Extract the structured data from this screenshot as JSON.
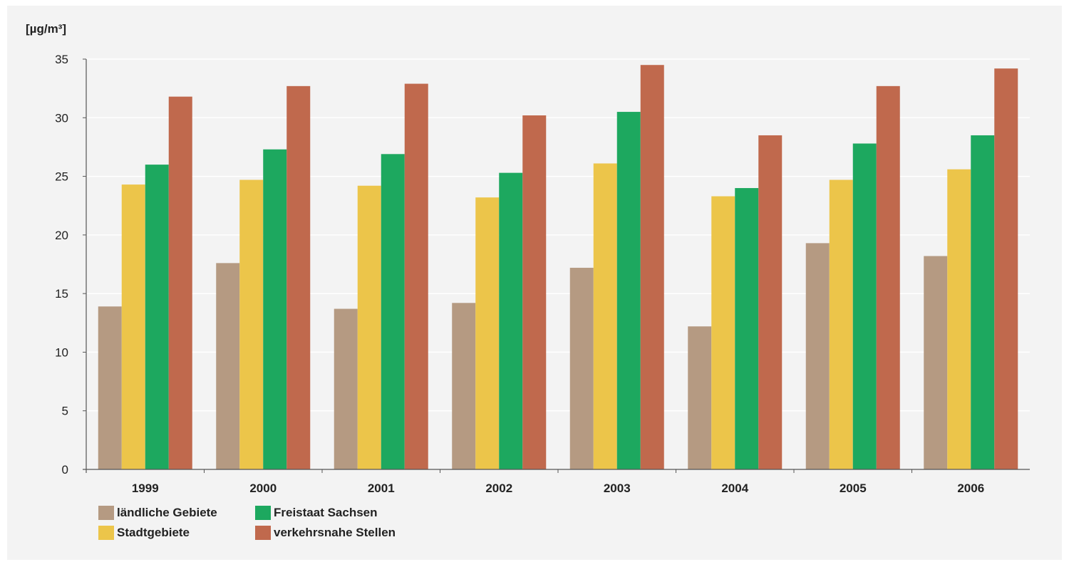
{
  "chart_data": {
    "type": "bar",
    "unit_label": "[µg/m³]",
    "categories": [
      "1999",
      "2000",
      "2001",
      "2002",
      "2003",
      "2004",
      "2005",
      "2006"
    ],
    "ylim": [
      0,
      35
    ],
    "yticks": [
      0,
      5,
      10,
      15,
      20,
      25,
      30,
      35
    ],
    "grid": true,
    "legend_position": "bottom-left",
    "series": [
      {
        "name": "ländliche Gebiete",
        "color": "#b59a82",
        "values": [
          13.9,
          17.6,
          13.7,
          14.2,
          17.2,
          12.2,
          19.3,
          18.2
        ]
      },
      {
        "name": "Stadtgebiete",
        "color": "#ecc54a",
        "values": [
          24.3,
          24.7,
          24.2,
          23.2,
          26.1,
          23.3,
          24.7,
          25.6
        ]
      },
      {
        "name": "Freistaat Sachsen",
        "color": "#1da85f",
        "values": [
          26.0,
          27.3,
          26.9,
          25.3,
          30.5,
          24.0,
          27.8,
          28.5
        ]
      },
      {
        "name": "verkehrsnahe Stellen",
        "color": "#c0694d",
        "values": [
          31.8,
          32.7,
          32.9,
          30.2,
          34.5,
          28.5,
          32.7,
          34.2
        ]
      }
    ]
  }
}
